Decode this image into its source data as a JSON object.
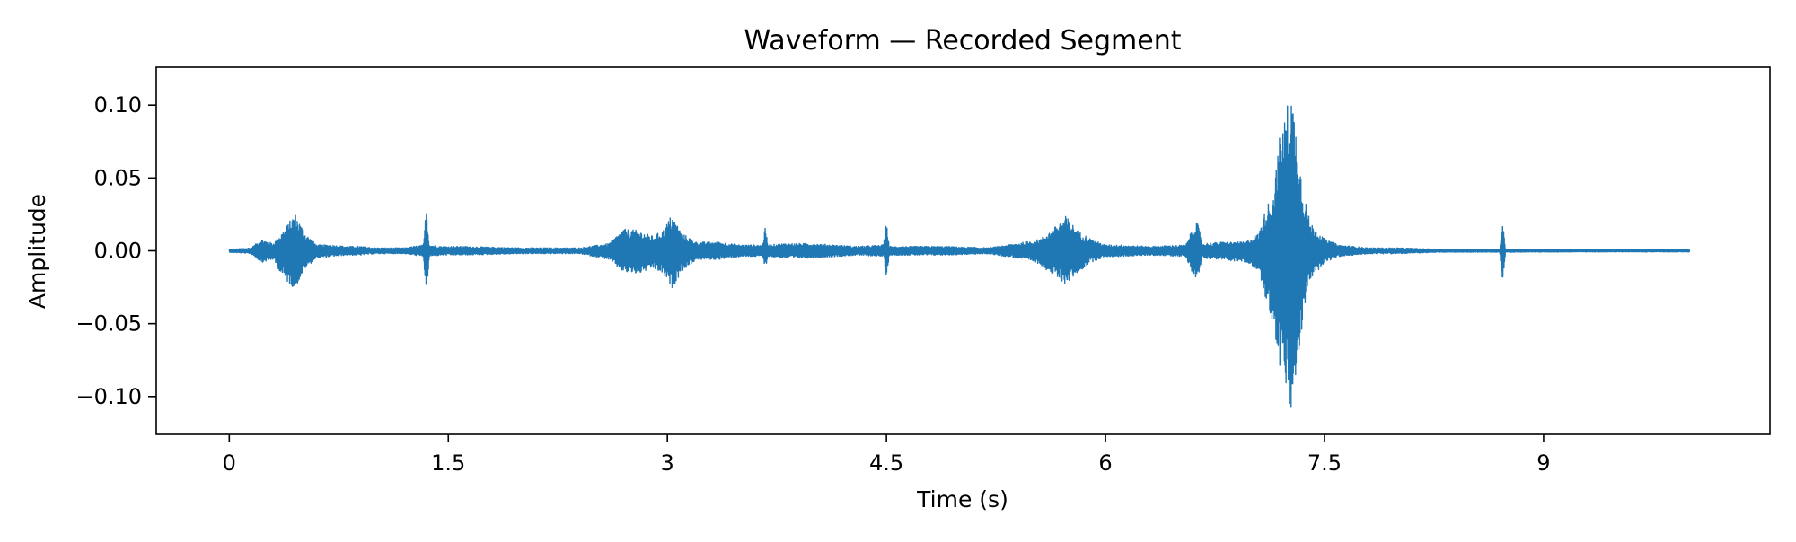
{
  "chart_data": {
    "type": "line",
    "title": "Waveform — Recorded Segment",
    "xlabel": "Time (s)",
    "ylabel": "Amplitude",
    "xlim": [
      -0.5,
      10.55
    ],
    "ylim": [
      -0.126,
      0.126
    ],
    "x_ticks": [
      0,
      1.5,
      3,
      4.5,
      6,
      7.5,
      9
    ],
    "x_tick_labels": [
      "0",
      "1.5",
      "3",
      "4.5",
      "6",
      "7.5",
      "9"
    ],
    "y_ticks": [
      0.1,
      0.05,
      0.0,
      -0.05,
      -0.1
    ],
    "y_tick_labels": [
      "0.10",
      "0.05",
      "0.00",
      "−0.05",
      "−0.10"
    ],
    "grid": false,
    "legend": "none",
    "line_color": "#1f77b4",
    "duration_s": 10.0,
    "envelope": {
      "time_s": [
        0.0,
        0.15,
        0.22,
        0.3,
        0.38,
        0.45,
        0.52,
        0.6,
        0.7,
        0.8,
        0.9,
        1.0,
        1.2,
        1.33,
        1.35,
        1.37,
        1.45,
        1.6,
        2.0,
        2.4,
        2.6,
        2.7,
        2.8,
        2.9,
        2.97,
        3.03,
        3.1,
        3.2,
        3.35,
        3.5,
        3.65,
        3.67,
        3.69,
        3.8,
        4.0,
        4.3,
        4.48,
        4.5,
        4.52,
        4.6,
        4.9,
        5.2,
        5.45,
        5.55,
        5.65,
        5.73,
        5.8,
        5.9,
        6.0,
        6.1,
        6.3,
        6.55,
        6.62,
        6.64,
        6.66,
        6.8,
        6.95,
        7.05,
        7.1,
        7.15,
        7.2,
        7.22,
        7.27,
        7.3,
        7.35,
        7.4,
        7.5,
        7.6,
        7.8,
        8.0,
        8.3,
        8.6,
        8.7,
        8.72,
        8.74,
        8.8,
        9.2,
        9.6,
        10.0
      ],
      "peak": [
        0.001,
        0.002,
        0.008,
        0.005,
        0.015,
        0.026,
        0.012,
        0.004,
        0.004,
        0.003,
        0.003,
        0.002,
        0.002,
        0.004,
        0.033,
        0.004,
        0.003,
        0.003,
        0.002,
        0.002,
        0.005,
        0.015,
        0.014,
        0.01,
        0.014,
        0.025,
        0.012,
        0.006,
        0.006,
        0.004,
        0.004,
        0.016,
        0.004,
        0.005,
        0.005,
        0.003,
        0.004,
        0.02,
        0.003,
        0.003,
        0.003,
        0.002,
        0.006,
        0.008,
        0.016,
        0.024,
        0.015,
        0.008,
        0.004,
        0.004,
        0.003,
        0.004,
        0.021,
        0.016,
        0.005,
        0.006,
        0.006,
        0.012,
        0.03,
        0.04,
        0.085,
        0.087,
        0.115,
        0.09,
        0.045,
        0.02,
        0.008,
        0.004,
        0.002,
        0.002,
        0.001,
        0.001,
        0.001,
        0.021,
        0.001,
        0.001,
        0.0008,
        0.0008,
        0.0008
      ],
      "trough": [
        -0.001,
        -0.002,
        -0.008,
        -0.006,
        -0.02,
        -0.026,
        -0.012,
        -0.005,
        -0.004,
        -0.003,
        -0.003,
        -0.002,
        -0.002,
        -0.004,
        -0.033,
        -0.004,
        -0.003,
        -0.003,
        -0.002,
        -0.002,
        -0.006,
        -0.015,
        -0.016,
        -0.012,
        -0.016,
        -0.026,
        -0.014,
        -0.006,
        -0.006,
        -0.004,
        -0.004,
        -0.012,
        -0.004,
        -0.005,
        -0.005,
        -0.003,
        -0.004,
        -0.018,
        -0.003,
        -0.003,
        -0.003,
        -0.002,
        -0.006,
        -0.009,
        -0.018,
        -0.023,
        -0.016,
        -0.008,
        -0.004,
        -0.004,
        -0.003,
        -0.004,
        -0.021,
        -0.016,
        -0.005,
        -0.006,
        -0.008,
        -0.013,
        -0.035,
        -0.05,
        -0.085,
        -0.088,
        -0.116,
        -0.095,
        -0.05,
        -0.02,
        -0.008,
        -0.004,
        -0.002,
        -0.002,
        -0.001,
        -0.001,
        -0.001,
        -0.022,
        -0.001,
        -0.001,
        -0.0008,
        -0.0008,
        -0.0008
      ]
    }
  }
}
